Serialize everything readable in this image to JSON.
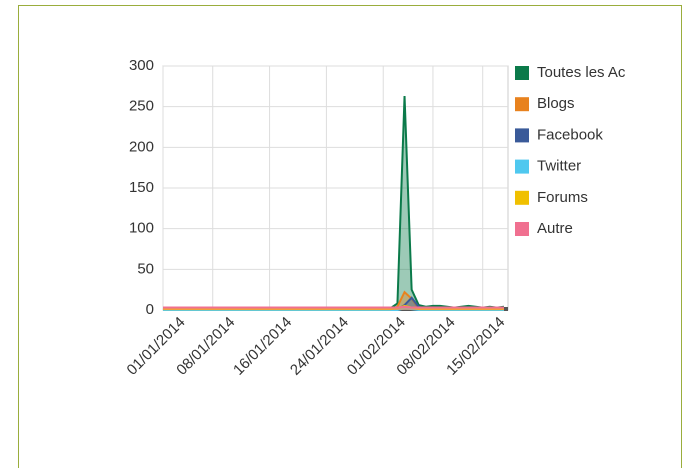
{
  "chart_data": {
    "type": "area",
    "x": [
      "01/01/2014",
      "02/01/2014",
      "03/01/2014",
      "04/01/2014",
      "05/01/2014",
      "06/01/2014",
      "07/01/2014",
      "08/01/2014",
      "09/01/2014",
      "10/01/2014",
      "11/01/2014",
      "12/01/2014",
      "13/01/2014",
      "14/01/2014",
      "15/01/2014",
      "16/01/2014",
      "17/01/2014",
      "18/01/2014",
      "19/01/2014",
      "20/01/2014",
      "21/01/2014",
      "22/01/2014",
      "23/01/2014",
      "24/01/2014",
      "25/01/2014",
      "26/01/2014",
      "27/01/2014",
      "28/01/2014",
      "29/01/2014",
      "30/01/2014",
      "31/01/2014",
      "01/02/2014",
      "02/02/2014",
      "03/02/2014",
      "04/02/2014",
      "05/02/2014",
      "06/02/2014",
      "07/02/2014",
      "08/02/2014",
      "09/02/2014",
      "10/02/2014",
      "11/02/2014",
      "12/02/2014",
      "13/02/2014",
      "14/02/2014",
      "15/02/2014",
      "16/02/2014",
      "17/02/2014",
      "18/02/2014"
    ],
    "xlim": [
      "01/01/2014",
      "18/02/2014"
    ],
    "xticks": [
      "01/01/2014",
      "08/01/2014",
      "16/01/2014",
      "24/01/2014",
      "01/02/2014",
      "08/02/2014",
      "15/02/2014"
    ],
    "ylim": [
      0,
      300
    ],
    "yticks": [
      0,
      50,
      100,
      150,
      200,
      250,
      300
    ],
    "grid": true,
    "legend": "right",
    "series": [
      {
        "name": "Toutes les Ac",
        "color": "#0b7a4a",
        "values": [
          2,
          1,
          1,
          2,
          1,
          1,
          2,
          1,
          3,
          1,
          2,
          3,
          3,
          2,
          1,
          1,
          2,
          1,
          1,
          2,
          1,
          1,
          2,
          1,
          1,
          2,
          1,
          1,
          3,
          2,
          1,
          3,
          2,
          8,
          263,
          25,
          6,
          4,
          5,
          5,
          4,
          3,
          4,
          5,
          4,
          3,
          4,
          3,
          4
        ]
      },
      {
        "name": "Blogs",
        "color": "#e8821e",
        "values": [
          0,
          0,
          0,
          1,
          0,
          0,
          1,
          0,
          1,
          0,
          0,
          1,
          1,
          0,
          0,
          0,
          1,
          0,
          0,
          1,
          0,
          0,
          1,
          0,
          0,
          1,
          0,
          0,
          1,
          1,
          0,
          1,
          1,
          4,
          22,
          14,
          2,
          1,
          2,
          2,
          1,
          1,
          2,
          2,
          1,
          1,
          2,
          1,
          1
        ]
      },
      {
        "name": "Facebook",
        "color": "#3a5a99",
        "values": [
          0,
          0,
          0,
          0,
          0,
          0,
          0,
          0,
          1,
          0,
          0,
          1,
          0,
          0,
          0,
          0,
          0,
          0,
          0,
          0,
          0,
          0,
          0,
          0,
          0,
          0,
          0,
          0,
          1,
          0,
          0,
          0,
          0,
          1,
          6,
          15,
          4,
          1,
          1,
          1,
          1,
          0,
          1,
          1,
          0,
          0,
          1,
          0,
          1
        ]
      },
      {
        "name": "Twitter",
        "color": "#4fc8ef",
        "values": [
          0,
          0,
          0,
          0,
          0,
          0,
          0,
          0,
          0,
          0,
          0,
          0,
          0,
          0,
          0,
          0,
          0,
          0,
          0,
          0,
          0,
          0,
          0,
          0,
          0,
          0,
          0,
          0,
          0,
          0,
          0,
          0,
          0,
          0,
          2,
          1,
          0,
          0,
          0,
          0,
          0,
          0,
          0,
          0,
          0,
          0,
          0,
          0,
          0
        ]
      },
      {
        "name": "Forums",
        "color": "#f0c000",
        "values": [
          1,
          1,
          1,
          1,
          1,
          1,
          1,
          1,
          1,
          1,
          1,
          1,
          1,
          1,
          1,
          1,
          1,
          1,
          1,
          1,
          1,
          1,
          1,
          1,
          1,
          1,
          1,
          1,
          1,
          1,
          1,
          1,
          1,
          2,
          5,
          3,
          1,
          1,
          1,
          1,
          1,
          1,
          1,
          1,
          1,
          1,
          1,
          1,
          1
        ]
      },
      {
        "name": "Autre",
        "color": "#f07090",
        "values": [
          3,
          3,
          3,
          3,
          3,
          3,
          3,
          3,
          3,
          3,
          3,
          3,
          3,
          3,
          3,
          3,
          3,
          3,
          3,
          3,
          3,
          3,
          3,
          3,
          3,
          3,
          3,
          3,
          3,
          3,
          3,
          3,
          3,
          3,
          4,
          3,
          3,
          3,
          3,
          3,
          3,
          3,
          3,
          3,
          3,
          3,
          3,
          3,
          3
        ]
      }
    ]
  }
}
